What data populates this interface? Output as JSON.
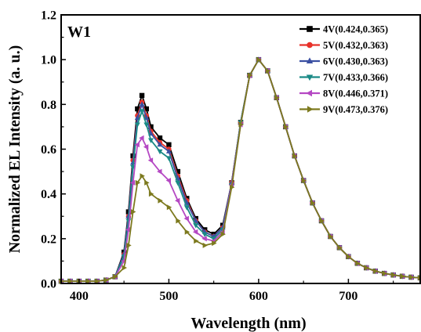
{
  "chart_data": {
    "type": "line",
    "panel_label": "W1",
    "xlabel": "Wavelength (nm)",
    "ylabel": "Normalized EL Intensity (a. u.)",
    "xlim": [
      380,
      780
    ],
    "ylim": [
      0.0,
      1.2
    ],
    "x_ticks": [
      400,
      500,
      600,
      700
    ],
    "y_ticks": [
      0.0,
      0.2,
      0.4,
      0.6,
      0.8,
      1.0,
      1.2
    ],
    "y_tick_labels": [
      "0.0",
      "0.2",
      "0.4",
      "0.6",
      "0.8",
      "1.0",
      "1.2"
    ],
    "grid": false,
    "legend_position": "top-right",
    "x": [
      380,
      390,
      400,
      410,
      420,
      430,
      440,
      450,
      455,
      460,
      465,
      470,
      475,
      480,
      490,
      500,
      510,
      520,
      530,
      540,
      550,
      560,
      570,
      580,
      590,
      600,
      610,
      620,
      630,
      640,
      650,
      660,
      670,
      680,
      690,
      700,
      710,
      720,
      730,
      740,
      750,
      760,
      770,
      780
    ],
    "series": [
      {
        "name": "4V(0.424,0.365)",
        "color": "#000000",
        "marker": "square",
        "values": [
          0.01,
          0.01,
          0.01,
          0.01,
          0.01,
          0.015,
          0.03,
          0.14,
          0.32,
          0.57,
          0.78,
          0.84,
          0.78,
          0.7,
          0.65,
          0.62,
          0.5,
          0.38,
          0.29,
          0.24,
          0.22,
          0.26,
          0.45,
          0.72,
          0.93,
          1.0,
          0.95,
          0.83,
          0.7,
          0.57,
          0.46,
          0.36,
          0.28,
          0.21,
          0.16,
          0.12,
          0.09,
          0.07,
          0.055,
          0.045,
          0.038,
          0.032,
          0.028,
          0.025
        ]
      },
      {
        "name": "5V(0.432,0.363)",
        "color": "#e8322a",
        "marker": "circle",
        "values": [
          0.01,
          0.01,
          0.01,
          0.01,
          0.01,
          0.015,
          0.03,
          0.13,
          0.3,
          0.55,
          0.75,
          0.81,
          0.75,
          0.68,
          0.63,
          0.6,
          0.48,
          0.37,
          0.28,
          0.23,
          0.21,
          0.25,
          0.45,
          0.72,
          0.93,
          1.0,
          0.95,
          0.83,
          0.7,
          0.57,
          0.46,
          0.36,
          0.28,
          0.21,
          0.16,
          0.12,
          0.09,
          0.07,
          0.055,
          0.045,
          0.038,
          0.032,
          0.028,
          0.025
        ]
      },
      {
        "name": "6V(0.430,0.363)",
        "color": "#3a4fa2",
        "marker": "triangle-up",
        "values": [
          0.01,
          0.01,
          0.01,
          0.01,
          0.01,
          0.015,
          0.03,
          0.13,
          0.3,
          0.54,
          0.74,
          0.8,
          0.74,
          0.67,
          0.62,
          0.59,
          0.47,
          0.36,
          0.28,
          0.23,
          0.21,
          0.25,
          0.45,
          0.72,
          0.93,
          1.0,
          0.95,
          0.83,
          0.7,
          0.57,
          0.46,
          0.36,
          0.28,
          0.21,
          0.16,
          0.12,
          0.09,
          0.07,
          0.055,
          0.045,
          0.038,
          0.032,
          0.028,
          0.025
        ]
      },
      {
        "name": "7V(0.433,0.366)",
        "color": "#1a8a86",
        "marker": "triangle-down",
        "values": [
          0.01,
          0.01,
          0.01,
          0.01,
          0.01,
          0.015,
          0.03,
          0.12,
          0.28,
          0.52,
          0.71,
          0.77,
          0.71,
          0.64,
          0.59,
          0.56,
          0.45,
          0.34,
          0.26,
          0.22,
          0.2,
          0.24,
          0.44,
          0.72,
          0.93,
          1.0,
          0.95,
          0.83,
          0.7,
          0.57,
          0.46,
          0.36,
          0.28,
          0.21,
          0.16,
          0.12,
          0.09,
          0.07,
          0.055,
          0.045,
          0.038,
          0.032,
          0.028,
          0.025
        ]
      },
      {
        "name": "8V(0.446,0.371)",
        "color": "#b548c3",
        "marker": "triangle-left",
        "values": [
          0.01,
          0.01,
          0.01,
          0.01,
          0.01,
          0.015,
          0.03,
          0.1,
          0.24,
          0.45,
          0.62,
          0.65,
          0.61,
          0.55,
          0.5,
          0.46,
          0.37,
          0.29,
          0.23,
          0.2,
          0.19,
          0.23,
          0.44,
          0.71,
          0.93,
          1.0,
          0.95,
          0.83,
          0.7,
          0.57,
          0.46,
          0.36,
          0.28,
          0.21,
          0.16,
          0.12,
          0.09,
          0.07,
          0.055,
          0.045,
          0.038,
          0.032,
          0.028,
          0.025
        ]
      },
      {
        "name": "9V(0.473,0.376)",
        "color": "#7d7a1f",
        "marker": "triangle-right",
        "values": [
          0.01,
          0.01,
          0.01,
          0.01,
          0.01,
          0.015,
          0.03,
          0.07,
          0.17,
          0.32,
          0.45,
          0.48,
          0.45,
          0.4,
          0.37,
          0.34,
          0.28,
          0.23,
          0.19,
          0.17,
          0.18,
          0.22,
          0.43,
          0.71,
          0.93,
          1.0,
          0.95,
          0.83,
          0.7,
          0.57,
          0.46,
          0.36,
          0.28,
          0.21,
          0.16,
          0.12,
          0.09,
          0.07,
          0.055,
          0.045,
          0.038,
          0.032,
          0.028,
          0.025
        ]
      }
    ]
  }
}
